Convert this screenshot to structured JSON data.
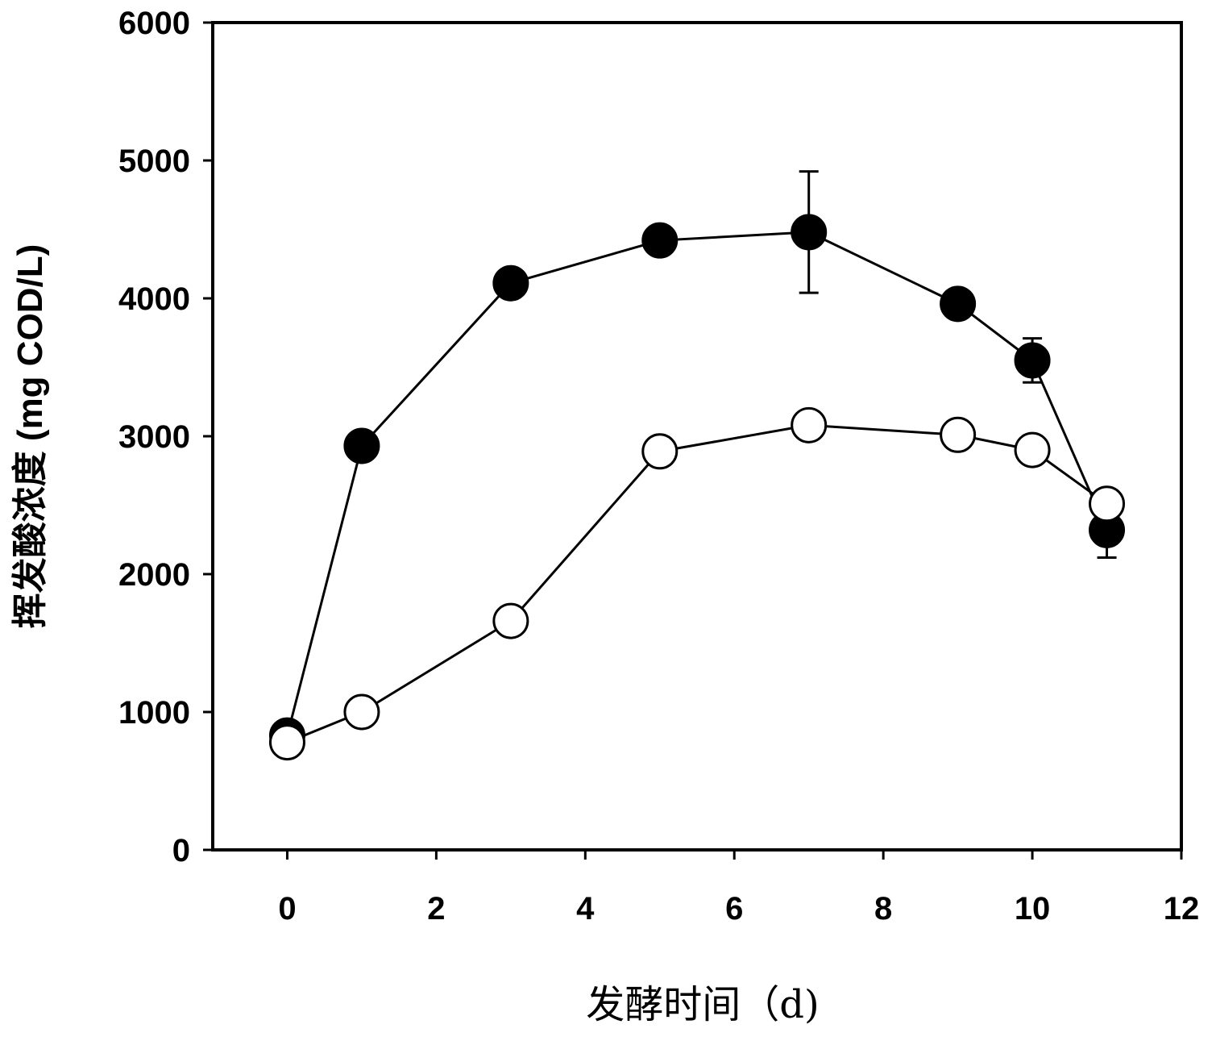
{
  "chart_data": {
    "type": "scatter",
    "xlabel": "发酵时间（d)",
    "ylabel": "挥发酸浓度 (mg COD/L)",
    "xlim": [
      -1,
      12
    ],
    "ylim": [
      0,
      6000
    ],
    "x_ticks": [
      0,
      2,
      4,
      6,
      8,
      10,
      12
    ],
    "y_ticks": [
      0,
      1000,
      2000,
      3000,
      4000,
      5000,
      6000
    ],
    "grid": false,
    "legend": "none",
    "series": [
      {
        "marker": "filled-circle",
        "color": "#000000",
        "x": [
          0,
          1,
          3,
          5,
          7,
          9,
          10,
          11
        ],
        "y": [
          830,
          2930,
          4110,
          4420,
          4480,
          3960,
          3550,
          2320
        ],
        "error": [
          0,
          0,
          0,
          0,
          440,
          0,
          160,
          200
        ]
      },
      {
        "marker": "open-circle",
        "color": "#000000",
        "x": [
          0,
          1,
          3,
          5,
          7,
          9,
          10,
          11
        ],
        "y": [
          780,
          1000,
          1660,
          2890,
          3080,
          3010,
          2900,
          2510
        ],
        "error": [
          0,
          0,
          0,
          0,
          0,
          0,
          0,
          0
        ]
      }
    ]
  }
}
